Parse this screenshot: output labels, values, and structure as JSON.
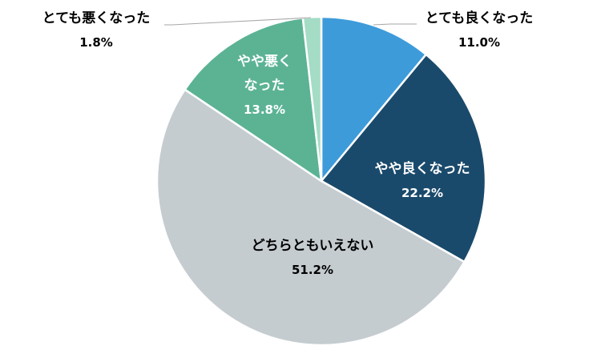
{
  "chart_data": {
    "type": "pie",
    "start_angle_deg": 0,
    "direction": "clockwise",
    "slices": [
      {
        "label": "とても良くなった",
        "value": 11.0,
        "value_label": "11.0%",
        "color": "#3D9BDA",
        "label_position": "outside",
        "label_color": "#000000"
      },
      {
        "label": "やや良くなった",
        "value": 22.2,
        "value_label": "22.2%",
        "color": "#1A4A6B",
        "label_position": "inside",
        "label_color": "#ffffff"
      },
      {
        "label": "どちらともいえない",
        "value": 51.2,
        "value_label": "51.2%",
        "color": "#C5CCD0",
        "label_position": "inside",
        "label_color": "#000000"
      },
      {
        "label": "やや悪くなった",
        "label_lines": [
          "やや悪く",
          "なった"
        ],
        "value": 13.8,
        "value_label": "13.8%",
        "color": "#5BB394",
        "label_position": "inside",
        "label_color": "#ffffff"
      },
      {
        "label": "とても悪くなった",
        "value": 1.8,
        "value_label": "1.8%",
        "color": "#A4DCC6",
        "label_position": "outside",
        "label_color": "#000000"
      }
    ]
  }
}
